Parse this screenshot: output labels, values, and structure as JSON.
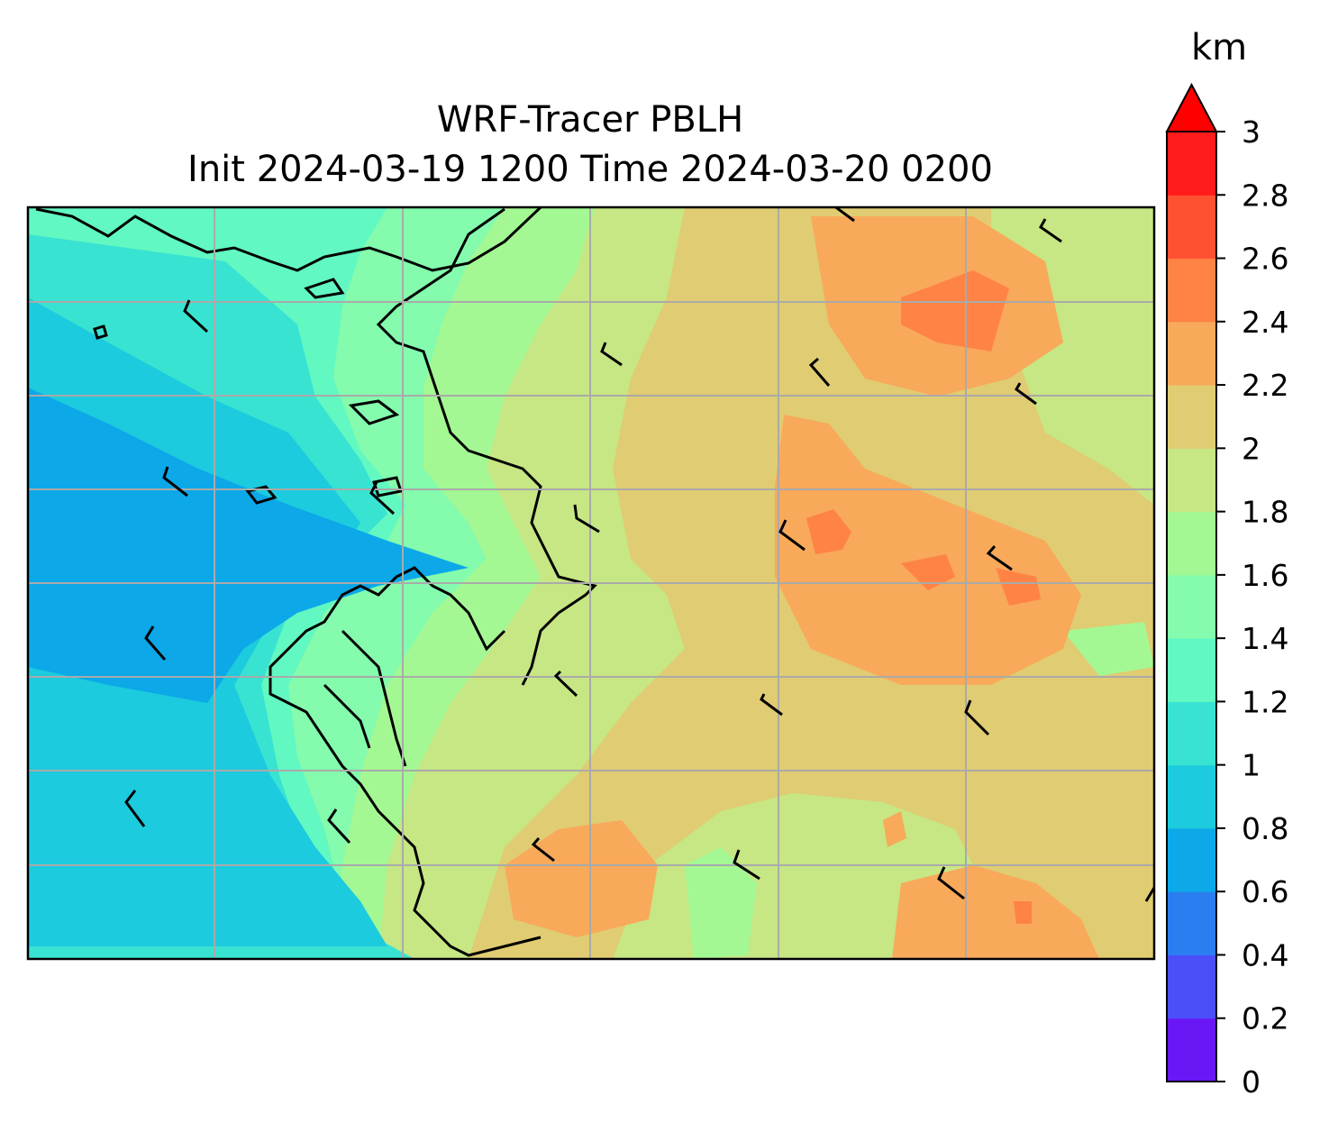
{
  "title_line1": "WRF-Tracer PBLH",
  "title_line2": "Init 2024-03-19 1200 Time 2024-03-20 0200",
  "colorbar": {
    "unit": "km",
    "ticks": [
      "0",
      "0.2",
      "0.4",
      "0.6",
      "0.8",
      "1",
      "1.2",
      "1.4",
      "1.6",
      "1.8",
      "2",
      "2.2",
      "2.4",
      "2.6",
      "2.8",
      "3"
    ],
    "levels": [
      0,
      0.2,
      0.4,
      0.6,
      0.8,
      1.0,
      1.2,
      1.4,
      1.6,
      1.8,
      2.0,
      2.2,
      2.4,
      2.6,
      2.8,
      3.0
    ],
    "colors": [
      "#6a17f5",
      "#4b4ff8",
      "#2b7ef0",
      "#0ca8e8",
      "#1ccbdd",
      "#39e3d2",
      "#62f8c2",
      "#84fbad",
      "#a4f893",
      "#c7e684",
      "#e0cc72",
      "#f8a95a",
      "#ff8345",
      "#ff5130",
      "#ff1b1a"
    ],
    "extend_color": "#ff0000"
  },
  "chart_data": {
    "type": "heatmap",
    "variable": "PBLH",
    "units": "km",
    "description_regions": {
      "west_ocean_min": 0.6,
      "coastal_band": [
        1.0,
        1.6
      ],
      "inland_east_typical": [
        2.0,
        2.4
      ],
      "local_maxima": 2.6
    },
    "gridlines": true
  }
}
